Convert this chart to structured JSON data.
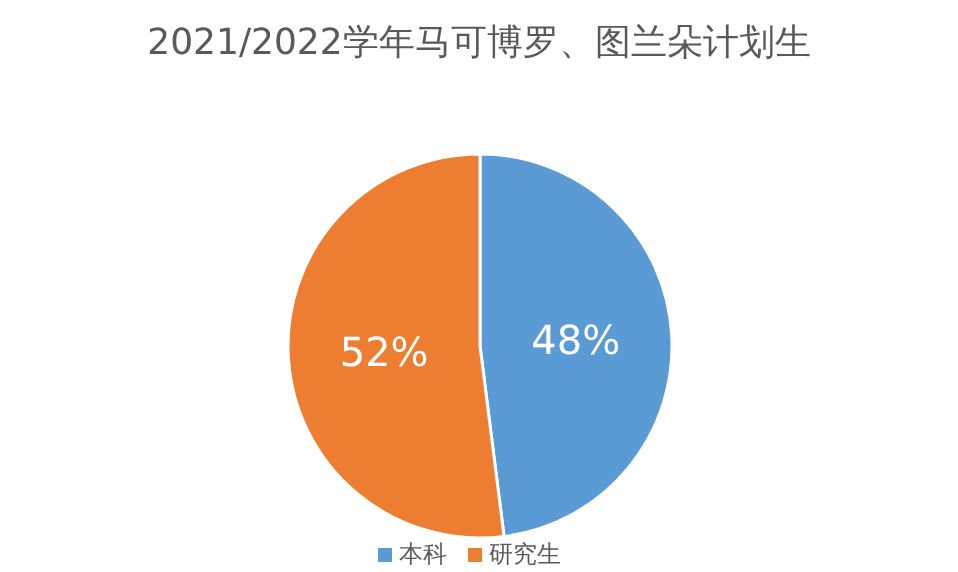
{
  "chart_data": {
    "type": "pie",
    "title": "2021/2022学年马可博罗、图兰朵计划生",
    "categories": [
      "本科",
      "研究生"
    ],
    "values": [
      48,
      52
    ],
    "colors": [
      "#5b9bd5",
      "#ed7d31"
    ],
    "value_labels": [
      "48%",
      "52%"
    ],
    "legend": "bottom"
  }
}
